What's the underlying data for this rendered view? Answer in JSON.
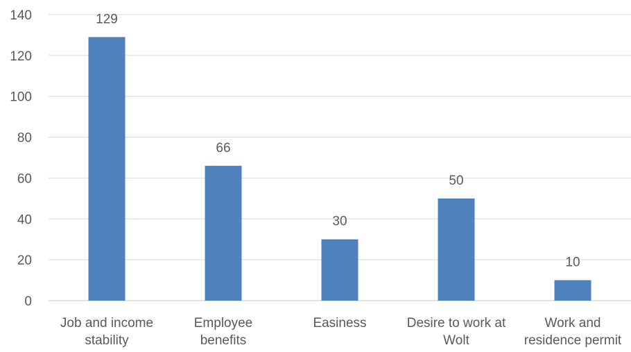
{
  "chart_data": {
    "type": "bar",
    "title": "",
    "xlabel": "",
    "ylabel": "",
    "categories": [
      [
        "Job and income",
        "stability"
      ],
      [
        "Employee",
        "benefits"
      ],
      [
        "Easiness"
      ],
      [
        "Desire to work at",
        "Wolt"
      ],
      [
        "Work and",
        "residence permit"
      ]
    ],
    "values": [
      129,
      66,
      30,
      50,
      10
    ],
    "data_labels": [
      "129",
      "66",
      "30",
      "50",
      "10"
    ],
    "ylim": [
      0,
      140
    ],
    "y_ticks": [
      0,
      20,
      40,
      60,
      80,
      100,
      120,
      140
    ],
    "grid": true,
    "legend": "none",
    "colors": {
      "bar": "#4f81bd",
      "grid": "#d9d9d9",
      "text": "#595959"
    }
  }
}
